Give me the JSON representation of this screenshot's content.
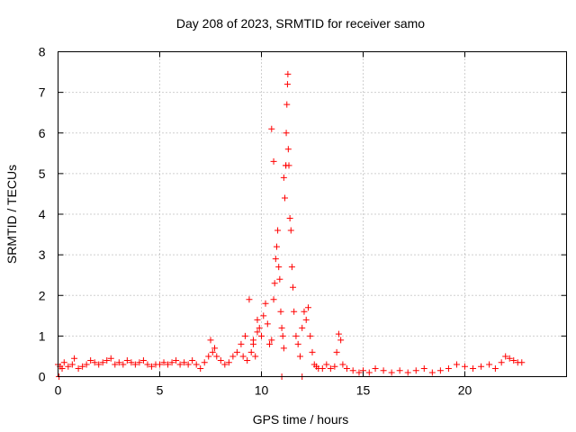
{
  "chart_data": {
    "type": "scatter",
    "title": "Day 208 of 2023, SRMTID for receiver samo",
    "xlabel": "GPS time / hours",
    "ylabel": "SRMTID / TECUs",
    "xlim": [
      0,
      25
    ],
    "ylim": [
      0,
      8
    ],
    "x_ticks": [
      0,
      5,
      10,
      15,
      20
    ],
    "x_tick_labels": [
      "0",
      "5",
      "10",
      "15",
      "20"
    ],
    "y_ticks": [
      0,
      1,
      2,
      3,
      4,
      5,
      6,
      7,
      8
    ],
    "y_tick_labels": [
      "0",
      "1",
      "2",
      "3",
      "4",
      "5",
      "6",
      "7",
      "8"
    ],
    "grid": true,
    "marker": "+",
    "series": [
      {
        "name": "SRMTID",
        "color": "#ff0000",
        "x": [
          0.0,
          0.1,
          0.2,
          0.3,
          0.5,
          0.7,
          0.8,
          1.0,
          1.2,
          1.4,
          1.6,
          1.8,
          2.0,
          2.2,
          2.4,
          2.6,
          2.8,
          3.0,
          3.2,
          3.4,
          3.6,
          3.8,
          4.0,
          4.2,
          4.4,
          4.6,
          4.8,
          5.0,
          5.2,
          5.4,
          5.6,
          5.8,
          6.0,
          6.2,
          6.4,
          6.6,
          6.8,
          7.0,
          7.2,
          7.4,
          7.5,
          7.6,
          7.7,
          7.8,
          8.0,
          8.2,
          8.4,
          8.6,
          8.8,
          9.0,
          9.1,
          9.2,
          9.3,
          9.4,
          9.5,
          9.6,
          9.7,
          9.8,
          9.9,
          10.0,
          10.1,
          10.2,
          10.3,
          10.4,
          10.5,
          10.6,
          10.65,
          10.7,
          10.75,
          10.8,
          10.85,
          10.9,
          10.95,
          11.0,
          11.05,
          11.1,
          11.15,
          11.2,
          11.22,
          11.25,
          11.28,
          11.3,
          11.32,
          11.35,
          11.4,
          11.45,
          11.5,
          11.55,
          11.6,
          11.7,
          11.8,
          11.9,
          12.0,
          12.1,
          12.2,
          12.3,
          12.4,
          12.5,
          12.6,
          12.7,
          12.8,
          13.0,
          13.2,
          13.4,
          13.6,
          13.7,
          13.8,
          13.9,
          14.0,
          14.2,
          14.5,
          14.8,
          15.0,
          15.3,
          15.6,
          16.0,
          16.4,
          16.8,
          17.2,
          17.6,
          18.0,
          18.4,
          18.8,
          19.2,
          19.6,
          20.0,
          20.4,
          20.8,
          21.2,
          21.5,
          21.8,
          22.0,
          22.2,
          22.4,
          22.6,
          22.8,
          0.05,
          10.5,
          10.6,
          11.1,
          11.2,
          9.8,
          9.6,
          11.0,
          12.0
        ],
        "y": [
          0.3,
          0.25,
          0.2,
          0.35,
          0.25,
          0.3,
          0.45,
          0.2,
          0.25,
          0.3,
          0.4,
          0.35,
          0.3,
          0.35,
          0.4,
          0.45,
          0.3,
          0.35,
          0.3,
          0.4,
          0.35,
          0.3,
          0.35,
          0.4,
          0.3,
          0.25,
          0.3,
          0.3,
          0.35,
          0.3,
          0.35,
          0.4,
          0.3,
          0.35,
          0.3,
          0.4,
          0.3,
          0.2,
          0.35,
          0.5,
          0.9,
          0.6,
          0.7,
          0.5,
          0.4,
          0.3,
          0.35,
          0.5,
          0.6,
          0.8,
          0.5,
          1.0,
          0.4,
          1.9,
          0.6,
          0.8,
          0.5,
          1.1,
          1.2,
          1.0,
          1.5,
          1.8,
          1.3,
          0.8,
          0.9,
          1.9,
          2.3,
          2.9,
          3.2,
          3.6,
          2.7,
          2.4,
          1.6,
          1.2,
          1.0,
          0.7,
          4.4,
          5.2,
          6.0,
          6.7,
          7.2,
          7.45,
          5.6,
          5.2,
          3.9,
          3.6,
          2.7,
          2.2,
          1.6,
          1.0,
          0.8,
          0.5,
          1.2,
          1.6,
          1.4,
          1.7,
          1.0,
          0.6,
          0.3,
          0.25,
          0.2,
          0.2,
          0.3,
          0.2,
          0.25,
          0.6,
          1.05,
          0.9,
          0.3,
          0.2,
          0.15,
          0.1,
          0.15,
          0.1,
          0.2,
          0.15,
          0.1,
          0.15,
          0.1,
          0.15,
          0.2,
          0.1,
          0.15,
          0.2,
          0.3,
          0.25,
          0.2,
          0.25,
          0.3,
          0.2,
          0.35,
          0.5,
          0.45,
          0.4,
          0.35,
          0.35,
          0.0,
          6.1,
          5.3,
          4.9,
          5.2,
          1.4,
          0.9,
          0.0,
          0.0
        ]
      }
    ]
  }
}
